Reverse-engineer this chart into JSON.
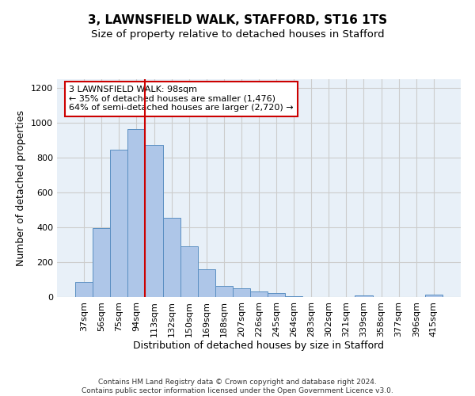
{
  "title": "3, LAWNSFIELD WALK, STAFFORD, ST16 1TS",
  "subtitle": "Size of property relative to detached houses in Stafford",
  "xlabel": "Distribution of detached houses by size in Stafford",
  "ylabel": "Number of detached properties",
  "categories": [
    "37sqm",
    "56sqm",
    "75sqm",
    "94sqm",
    "113sqm",
    "132sqm",
    "150sqm",
    "169sqm",
    "188sqm",
    "207sqm",
    "226sqm",
    "245sqm",
    "264sqm",
    "283sqm",
    "302sqm",
    "321sqm",
    "339sqm",
    "358sqm",
    "377sqm",
    "396sqm",
    "415sqm"
  ],
  "values": [
    85,
    395,
    845,
    965,
    875,
    455,
    290,
    160,
    65,
    48,
    30,
    22,
    5,
    0,
    0,
    0,
    10,
    0,
    0,
    0,
    12
  ],
  "bar_color": "#aec6e8",
  "bar_edge_color": "#5a8fc2",
  "vline_x": 3.5,
  "annotation_text": "3 LAWNSFIELD WALK: 98sqm\n← 35% of detached houses are smaller (1,476)\n64% of semi-detached houses are larger (2,720) →",
  "annotation_box_color": "#ffffff",
  "annotation_box_edge_color": "#cc0000",
  "vline_color": "#cc0000",
  "ylim": [
    0,
    1250
  ],
  "yticks": [
    0,
    200,
    400,
    600,
    800,
    1000,
    1200
  ],
  "grid_color": "#cccccc",
  "background_color": "#ffffff",
  "axes_bg_color": "#e8f0f8",
  "footer1": "Contains HM Land Registry data © Crown copyright and database right 2024.",
  "footer2": "Contains public sector information licensed under the Open Government Licence v3.0.",
  "title_fontsize": 11,
  "subtitle_fontsize": 9.5,
  "xlabel_fontsize": 9,
  "ylabel_fontsize": 9,
  "tick_fontsize": 8,
  "annot_fontsize": 8
}
